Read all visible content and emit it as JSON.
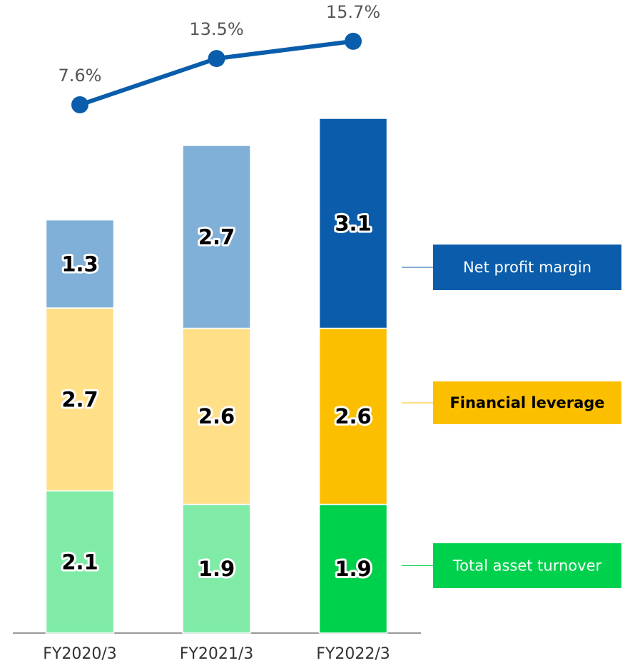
{
  "chart_data": {
    "type": "bar",
    "stacked": true,
    "categories": [
      "FY2020/3",
      "FY2021/3",
      "FY2022/3"
    ],
    "series": [
      {
        "name": "Total asset turnover",
        "colors": [
          "#80eba7",
          "#80eba7",
          "#00d14d"
        ],
        "values": [
          2.1,
          1.9,
          1.9
        ]
      },
      {
        "name": "Financial leverage",
        "colors": [
          "#ffdf88",
          "#ffdf88",
          "#fcbf00"
        ],
        "values": [
          2.7,
          2.6,
          2.6
        ]
      },
      {
        "name": "Net profit margin",
        "colors": [
          "#80b0d8",
          "#80b0d8",
          "#0b5dab"
        ],
        "values": [
          1.3,
          2.7,
          3.1
        ]
      }
    ],
    "line": {
      "color": "#0a5dab",
      "values": [
        7.6,
        13.5,
        15.7
      ],
      "value_labels": [
        "7.6%",
        "13.5%",
        "15.7%"
      ]
    }
  }
}
